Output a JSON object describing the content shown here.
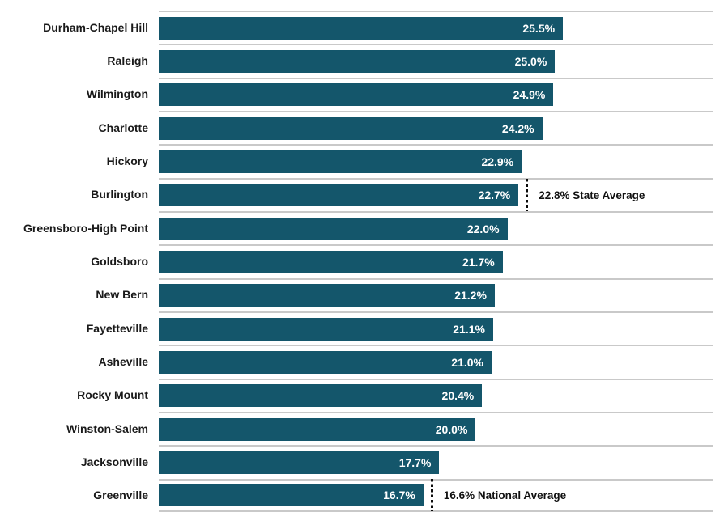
{
  "chart_data": {
    "type": "bar",
    "orientation": "horizontal",
    "title": "",
    "xlabel": "",
    "ylabel": "",
    "xlim": [
      0,
      35
    ],
    "grid": "row-separators",
    "bar_color": "#14566b",
    "gridline_color": "#c9c9c9",
    "value_label_color": "#ffffff",
    "category_label_color": "#1a1a1a",
    "categories": [
      "Durham-Chapel Hill",
      "Raleigh",
      "Wilmington",
      "Charlotte",
      "Hickory",
      "Burlington",
      "Greensboro-High Point",
      "Goldsboro",
      "New Bern",
      "Fayetteville",
      "Asheville",
      "Rocky Mount",
      "Winston-Salem",
      "Jacksonville",
      "Greenville"
    ],
    "values": [
      25.5,
      25.0,
      24.9,
      24.2,
      22.9,
      22.7,
      22.0,
      21.7,
      21.2,
      21.1,
      21.0,
      20.4,
      20.0,
      17.7,
      16.7
    ],
    "value_labels": [
      "25.5%",
      "25.0%",
      "24.9%",
      "24.2%",
      "22.9%",
      "22.7%",
      "22.0%",
      "21.7%",
      "21.2%",
      "21.1%",
      "21.0%",
      "20.4%",
      "20.0%",
      "17.7%",
      "16.7%"
    ],
    "annotations": [
      {
        "row_index": 5,
        "category": "Burlington",
        "value": 22.8,
        "label": "22.8% State Average",
        "line_style": "dotted"
      },
      {
        "row_index": 14,
        "category": "Greenville",
        "value": 16.6,
        "label": "16.6% National Average",
        "line_style": "dotted"
      }
    ]
  }
}
